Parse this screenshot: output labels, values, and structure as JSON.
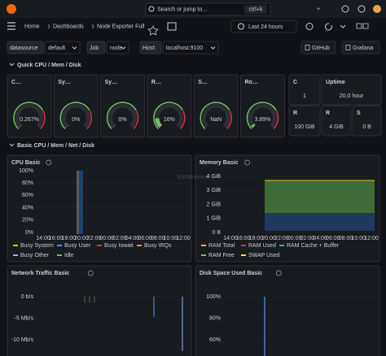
{
  "topbar": {
    "search": "Search or jump to...",
    "shortcut": "ctrl+k",
    "plus": "+"
  },
  "breadcrumb": [
    "Home",
    "Dashboards",
    "Node Exporter Full"
  ],
  "time_range": "Last 24 hours",
  "variables": [
    {
      "label": "datasource",
      "value": "default"
    },
    {
      "label": "Job",
      "value": "node"
    },
    {
      "label": "Host:",
      "value": "localhost:9100"
    }
  ],
  "links": [
    "GitHub",
    "Grafana"
  ],
  "rows": [
    "Quick CPU / Mem / Disk",
    "Basic CPU / Mem / Net / Disk"
  ],
  "gauges": [
    {
      "title": "C…",
      "value": 0.267,
      "label": "0.267%"
    },
    {
      "title": "Sy…",
      "value": 0,
      "label": "0%"
    },
    {
      "title": "Sy…",
      "value": 0,
      "label": "0%"
    },
    {
      "title": "R…",
      "value": 16,
      "label": "16%"
    },
    {
      "title": "S…",
      "value": null,
      "label": "NaN"
    },
    {
      "title": "Ro…",
      "value": 3.89,
      "label": "3.89%"
    }
  ],
  "stats": [
    {
      "title": "C",
      "value": "1"
    },
    {
      "title": "Uptime",
      "value": "20.0 hour"
    },
    {
      "title": "R",
      "value": "100 GiB"
    },
    {
      "title": "R",
      "value": "4 GiB"
    },
    {
      "title": "S",
      "value": "0 B"
    }
  ],
  "panels": [
    {
      "title": "CPU Basic",
      "yticks": [
        "100%",
        "80%",
        "60%",
        "40%",
        "20%",
        "0%"
      ],
      "xticks": [
        "14:00",
        "16:00",
        "18:00",
        "20:00",
        "22:00",
        "00:00",
        "02:00",
        "04:00",
        "06:00",
        "08:00",
        "10:00",
        "12:00"
      ],
      "legend": [
        {
          "name": "Busy System",
          "color": "#eab839"
        },
        {
          "name": "Busy User",
          "color": "#5794f2"
        },
        {
          "name": "Busy Iowait",
          "color": "#e02f44"
        },
        {
          "name": "Busy IRQs",
          "color": "#ff9830"
        },
        {
          "name": "Busy Other",
          "color": "#8ab8ff"
        },
        {
          "name": "Idle",
          "color": "#73bf69"
        }
      ]
    },
    {
      "title": "Memory Basic",
      "yticks": [
        "4 GiB",
        "3 GiB",
        "2 GiB",
        "1 GiB",
        "0 B"
      ],
      "xticks": [
        "14:00",
        "16:00",
        "18:00",
        "20:00",
        "22:00",
        "00:00",
        "02:00",
        "04:00",
        "06:00",
        "08:00",
        "10:00",
        "12:00"
      ],
      "legend": [
        {
          "name": "RAM Total",
          "color": "#eab839"
        },
        {
          "name": "RAM Used",
          "color": "#e02f44"
        },
        {
          "name": "RAM Cache + Buffer",
          "color": "#5794f2"
        },
        {
          "name": "RAM Free",
          "color": "#73bf69"
        },
        {
          "name": "SWAP Used",
          "color": "#fade2a"
        }
      ]
    },
    {
      "title": "Network Traffic Basic",
      "yticks": [
        "0 b/s",
        "-5 Mb/s",
        "-10 Mb/s"
      ],
      "xticks": [],
      "legend": []
    },
    {
      "title": "Disk Space Used Basic",
      "yticks": [
        "100%",
        "80%",
        "60%"
      ],
      "xticks": [],
      "legend": []
    }
  ],
  "watermark": "SSOReview"
}
